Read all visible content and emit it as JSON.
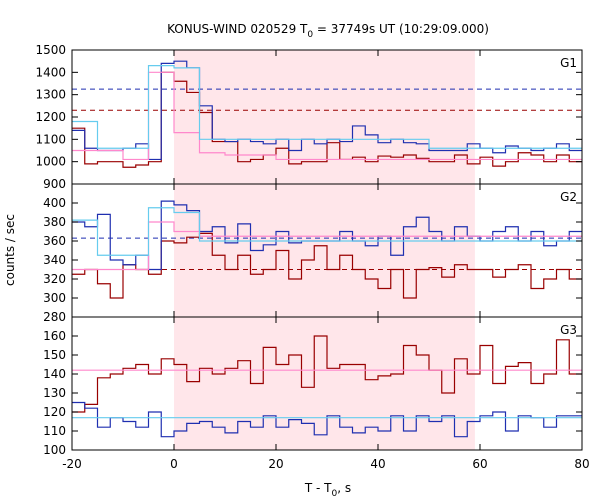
{
  "chart_data": {
    "type": "line",
    "title": "KONUS-WIND 020529 T",
    "title_sub": "0",
    "title_rest": " = 37749s UT (10:29:09.000)",
    "xlabel": "T - T",
    "xlabel_sub": "0",
    "xlabel_rest": ", s",
    "ylabel": "counts / sec",
    "xlim": [
      -20,
      80
    ],
    "x_ticks": [
      -20,
      0,
      20,
      40,
      60,
      80
    ],
    "highlight_interval": [
      0,
      59
    ],
    "colors": {
      "dark_red": "#990000",
      "blue": "#1f2fb0",
      "pink": "#ff88cc",
      "light_blue": "#66ccee",
      "highlight": "#ffe6ea"
    },
    "panels": [
      {
        "label": "G1",
        "ylim": [
          900,
          1500
        ],
        "y_ticks": [
          900,
          1000,
          1100,
          1200,
          1300,
          1400,
          1500
        ],
        "hlines": [
          {
            "color": "blue",
            "dashed": true,
            "y": 1325
          },
          {
            "color": "dark_red",
            "dashed": true,
            "y": 1230
          }
        ],
        "series": [
          {
            "color": "dark_red",
            "step": 2.5,
            "values": [
              1150,
              990,
              1000,
              1000,
              975,
              985,
              1000,
              1400,
              1360,
              1310,
              1220,
              1090,
              1090,
              1000,
              1010,
              1030,
              1060,
              990,
              1000,
              1000,
              1085,
              1010,
              1020,
              1000,
              1025,
              1020,
              1030,
              1015,
              1000,
              1000,
              1030,
              990,
              1020,
              980,
              1000,
              1040,
              1030,
              1000,
              1030,
              1000
            ]
          },
          {
            "color": "blue",
            "step": 2.5,
            "values": [
              1140,
              1060,
              1050,
              1050,
              1060,
              1080,
              1010,
              1440,
              1450,
              1420,
              1250,
              1100,
              1090,
              1100,
              1090,
              1080,
              1100,
              1050,
              1100,
              1080,
              1100,
              1090,
              1160,
              1120,
              1085,
              1100,
              1085,
              1080,
              1050,
              1050,
              1050,
              1080,
              1060,
              1040,
              1070,
              1060,
              1050,
              1060,
              1080,
              1050
            ]
          },
          {
            "color": "pink",
            "step": 5,
            "values": [
              1050,
              1050,
              1010,
              1400,
              1130,
              1040,
              1030,
              1030,
              1010,
              1010,
              1010,
              1010,
              1010,
              1010,
              1010,
              1010,
              1010,
              1010,
              1010,
              1010
            ]
          },
          {
            "color": "light_blue",
            "step": 5,
            "values": [
              1180,
              1060,
              1060,
              1430,
              1420,
              1100,
              1100,
              1100,
              1100,
              1100,
              1100,
              1100,
              1100,
              1100,
              1060,
              1060,
              1060,
              1060,
              1060,
              1060
            ]
          }
        ]
      },
      {
        "label": "G2",
        "ylim": [
          280,
          420
        ],
        "y_ticks": [
          280,
          300,
          320,
          340,
          360,
          380,
          400
        ],
        "hlines": [
          {
            "color": "blue",
            "dashed": true,
            "y": 363
          },
          {
            "color": "dark_red",
            "dashed": true,
            "y": 330
          }
        ],
        "series": [
          {
            "color": "dark_red",
            "step": 2.5,
            "values": [
              325,
              330,
              315,
              300,
              335,
              330,
              325,
              360,
              358,
              364,
              368,
              345,
              330,
              345,
              325,
              330,
              350,
              320,
              340,
              355,
              330,
              345,
              330,
              320,
              310,
              330,
              300,
              330,
              332,
              322,
              335,
              330,
              330,
              322,
              330,
              335,
              310,
              320,
              330,
              320
            ]
          },
          {
            "color": "blue",
            "step": 2.5,
            "values": [
              380,
              375,
              388,
              340,
              335,
              345,
              330,
              402,
              398,
              392,
              370,
              375,
              358,
              378,
              350,
              356,
              370,
              358,
              360,
              360,
              360,
              370,
              360,
              355,
              365,
              345,
              375,
              385,
              370,
              360,
              375,
              365,
              360,
              370,
              375,
              360,
              370,
              355,
              360,
              370
            ]
          },
          {
            "color": "pink",
            "step": 5,
            "values": [
              330,
              330,
              330,
              380,
              370,
              365,
              365,
              365,
              365,
              365,
              365,
              365,
              365,
              365,
              365,
              365,
              365,
              365,
              365,
              365
            ]
          },
          {
            "color": "light_blue",
            "step": 5,
            "values": [
              382,
              345,
              345,
              395,
              390,
              360,
              360,
              360,
              360,
              360,
              360,
              360,
              360,
              360,
              360,
              360,
              360,
              360,
              360,
              360
            ]
          }
        ]
      },
      {
        "label": "G3",
        "ylim": [
          100,
          170
        ],
        "y_ticks": [
          100,
          110,
          120,
          130,
          140,
          150,
          160
        ],
        "hlines": [],
        "series": [
          {
            "color": "dark_red",
            "step": 2.5,
            "values": [
              120,
              124,
              138,
              140,
              143,
              145,
              140,
              148,
              145,
              136,
              143,
              140,
              143,
              147,
              135,
              154,
              145,
              150,
              133,
              160,
              143,
              145,
              145,
              137,
              139,
              140,
              155,
              150,
              142,
              130,
              148,
              140,
              155,
              135,
              144,
              146,
              135,
              140,
              158,
              140
            ]
          },
          {
            "color": "blue",
            "step": 2.5,
            "values": [
              125,
              122,
              112,
              117,
              115,
              112,
              120,
              107,
              110,
              114,
              115,
              112,
              109,
              115,
              112,
              118,
              112,
              116,
              114,
              108,
              118,
              112,
              109,
              112,
              110,
              118,
              110,
              118,
              115,
              118,
              107,
              115,
              118,
              120,
              110,
              118,
              117,
              112,
              118,
              118
            ]
          },
          {
            "color": "pink",
            "step": 5,
            "values": [
              142,
              142,
              142,
              142,
              142,
              142,
              142,
              142,
              142,
              142,
              142,
              142,
              142,
              142,
              142,
              142,
              142,
              142,
              142,
              142
            ]
          },
          {
            "color": "light_blue",
            "step": 5,
            "values": [
              117,
              117,
              117,
              117,
              117,
              117,
              117,
              117,
              117,
              117,
              117,
              117,
              117,
              117,
              117,
              117,
              117,
              117,
              117,
              117
            ]
          }
        ]
      }
    ]
  }
}
